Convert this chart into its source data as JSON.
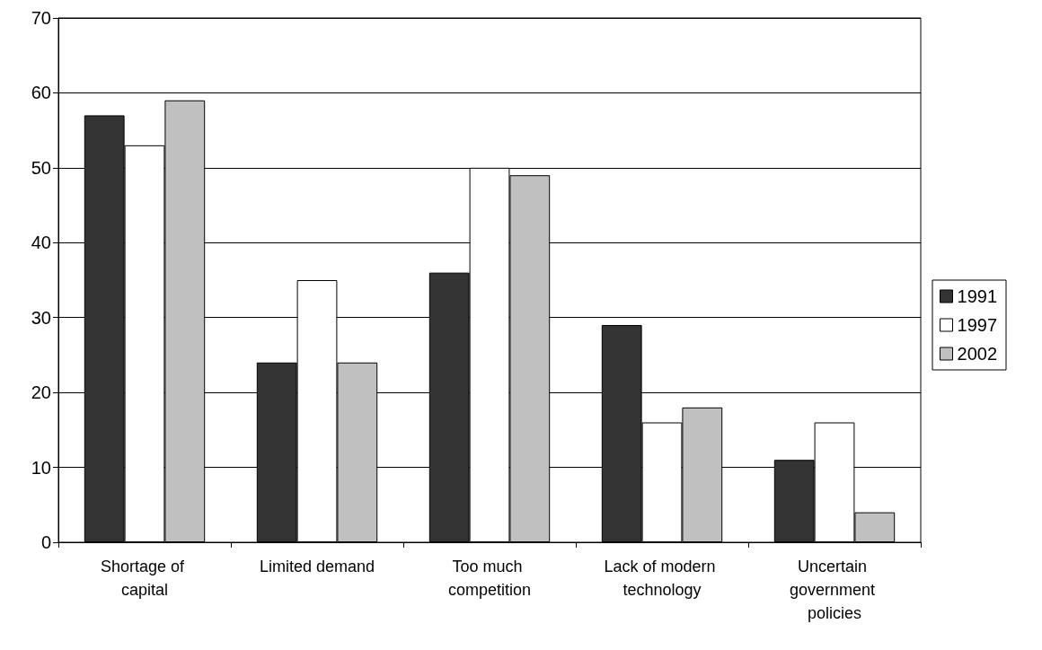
{
  "chart_data": {
    "type": "bar",
    "categories": [
      "Shortage of capital",
      "Limited demand",
      "Too much competition",
      "Lack of modern technology",
      "Uncertain government policies"
    ],
    "series": [
      {
        "name": "1991",
        "color": "#333333",
        "values": [
          57,
          24,
          36,
          29,
          11
        ]
      },
      {
        "name": "1997",
        "color": "#ffffff",
        "values": [
          53,
          35,
          50,
          16,
          16
        ]
      },
      {
        "name": "2002",
        "color": "#c0c0c0",
        "values": [
          59,
          24,
          49,
          18,
          4
        ]
      }
    ],
    "ylim": [
      0,
      70
    ],
    "yticks": [
      0,
      10,
      20,
      30,
      40,
      50,
      60,
      70
    ],
    "grid": "y",
    "legend": "right"
  }
}
